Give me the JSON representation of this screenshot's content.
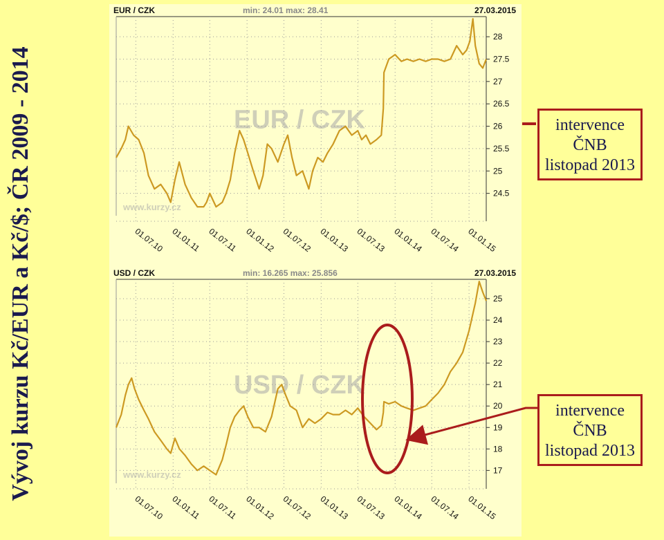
{
  "page": {
    "title": "Vývoj kurzu Kč/EUR a Kč/$; ČR 2009 - 2014"
  },
  "colors": {
    "background": "#ffff99",
    "panel": "#ffffcc",
    "line": "#cc9922",
    "annotation": "#aa1c1c",
    "title": "#1a1a4e"
  },
  "callouts": [
    {
      "lines": [
        "intervence",
        "ČNB",
        "listopad 2013"
      ]
    },
    {
      "lines": [
        "intervence",
        "ČNB",
        "listopad 2013"
      ]
    }
  ],
  "chart_data": [
    {
      "type": "line",
      "pair_label": "EUR / CZK",
      "minmax_label": "min: 24.01  max: 28.41",
      "date_label": "27.03.2015",
      "watermark": "EUR / CZK",
      "site": "www.kurzy.cz",
      "x_ticks": [
        "01.07.10",
        "01.01.11",
        "01.07.11",
        "01.01.12",
        "01.07.12",
        "01.01.13",
        "01.07.13",
        "01.01.14",
        "01.07.14",
        "01.01.15"
      ],
      "y_ticks": [
        24.5,
        25,
        25.5,
        26,
        26.5,
        27,
        27.5,
        28
      ],
      "x_range": [
        "2010-03-26",
        "2015-03-27"
      ],
      "y_range": [
        24.0,
        28.45
      ],
      "grid": true,
      "series": [
        {
          "x": [
            "2010-03-26",
            "2010-04-20",
            "2010-05-10",
            "2010-05-25",
            "2010-06-20",
            "2010-07-15",
            "2010-08-10",
            "2010-09-01",
            "2010-10-01",
            "2010-11-01",
            "2010-12-01",
            "2010-12-20",
            "2011-01-10",
            "2011-01-31",
            "2011-03-01",
            "2011-04-01",
            "2011-05-01",
            "2011-06-01",
            "2011-06-15",
            "2011-07-01",
            "2011-08-01",
            "2011-09-01",
            "2011-09-20",
            "2011-10-10",
            "2011-11-01",
            "2011-11-25",
            "2011-12-15",
            "2012-01-05",
            "2012-02-01",
            "2012-03-01",
            "2012-03-20",
            "2012-04-10",
            "2012-05-01",
            "2012-06-01",
            "2012-07-01",
            "2012-07-20",
            "2012-08-10",
            "2012-09-01",
            "2012-10-01",
            "2012-11-01",
            "2012-11-20",
            "2012-12-15",
            "2013-01-10",
            "2013-02-01",
            "2013-03-01",
            "2013-04-01",
            "2013-05-01",
            "2013-06-01",
            "2013-07-01",
            "2013-07-20",
            "2013-08-10",
            "2013-09-01",
            "2013-10-01",
            "2013-10-25",
            "2013-11-04",
            "2013-11-07",
            "2013-12-01",
            "2014-01-01",
            "2014-02-01",
            "2014-03-01",
            "2014-04-01",
            "2014-05-01",
            "2014-06-01",
            "2014-07-01",
            "2014-08-01",
            "2014-09-01",
            "2014-10-01",
            "2014-11-01",
            "2014-12-01",
            "2014-12-20",
            "2015-01-05",
            "2015-01-20",
            "2015-02-01",
            "2015-02-20",
            "2015-03-10",
            "2015-03-27"
          ],
          "y": [
            25.3,
            25.5,
            25.7,
            26.0,
            25.8,
            25.7,
            25.4,
            24.9,
            24.6,
            24.7,
            24.5,
            24.3,
            24.8,
            25.2,
            24.7,
            24.4,
            24.2,
            24.2,
            24.3,
            24.5,
            24.2,
            24.3,
            24.5,
            24.8,
            25.4,
            25.9,
            25.7,
            25.4,
            25.0,
            24.6,
            24.9,
            25.6,
            25.5,
            25.2,
            25.6,
            25.8,
            25.3,
            24.9,
            25.0,
            24.6,
            25.0,
            25.3,
            25.2,
            25.4,
            25.6,
            25.9,
            26.0,
            25.8,
            25.9,
            25.7,
            25.8,
            25.6,
            25.7,
            25.8,
            26.4,
            27.2,
            27.5,
            27.6,
            27.45,
            27.5,
            27.45,
            27.5,
            27.45,
            27.5,
            27.5,
            27.45,
            27.5,
            27.8,
            27.6,
            27.7,
            27.9,
            28.4,
            27.8,
            27.4,
            27.3,
            27.5
          ]
        }
      ]
    },
    {
      "type": "line",
      "pair_label": "USD / CZK",
      "minmax_label": "min: 16.265  max: 25.856",
      "date_label": "27.03.2015",
      "watermark": "USD / CZK",
      "site": "www.kurzy.cz",
      "x_ticks": [
        "01.07.10",
        "01.01.11",
        "01.07.11",
        "01.01.12",
        "01.07.12",
        "01.01.13",
        "01.07.13",
        "01.01.14",
        "01.07.14",
        "01.01.15"
      ],
      "y_ticks": [
        17,
        18,
        19,
        20,
        21,
        22,
        23,
        24,
        25
      ],
      "x_range": [
        "2010-03-26",
        "2015-03-27"
      ],
      "y_range": [
        16.4,
        25.9
      ],
      "grid": true,
      "series": [
        {
          "x": [
            "2010-03-26",
            "2010-04-20",
            "2010-05-10",
            "2010-05-25",
            "2010-06-10",
            "2010-06-25",
            "2010-07-15",
            "2010-08-10",
            "2010-09-01",
            "2010-10-01",
            "2010-11-01",
            "2010-12-01",
            "2010-12-20",
            "2011-01-10",
            "2011-02-01",
            "2011-03-01",
            "2011-04-01",
            "2011-05-01",
            "2011-06-01",
            "2011-07-01",
            "2011-08-01",
            "2011-09-01",
            "2011-09-20",
            "2011-10-10",
            "2011-11-01",
            "2011-11-25",
            "2011-12-15",
            "2012-01-05",
            "2012-02-01",
            "2012-03-01",
            "2012-04-01",
            "2012-05-01",
            "2012-06-01",
            "2012-06-20",
            "2012-07-10",
            "2012-08-01",
            "2012-09-01",
            "2012-10-01",
            "2012-11-01",
            "2012-12-01",
            "2013-01-01",
            "2013-02-01",
            "2013-03-01",
            "2013-04-01",
            "2013-05-01",
            "2013-06-01",
            "2013-07-01",
            "2013-08-01",
            "2013-09-01",
            "2013-10-01",
            "2013-10-25",
            "2013-11-04",
            "2013-11-07",
            "2013-12-01",
            "2014-01-01",
            "2014-02-01",
            "2014-03-01",
            "2014-04-01",
            "2014-05-01",
            "2014-06-01",
            "2014-07-01",
            "2014-08-01",
            "2014-09-01",
            "2014-10-01",
            "2014-11-01",
            "2014-12-01",
            "2015-01-01",
            "2015-01-20",
            "2015-02-01",
            "2015-02-20",
            "2015-03-10",
            "2015-03-27"
          ],
          "y": [
            19.0,
            19.6,
            20.5,
            21.0,
            21.3,
            20.8,
            20.3,
            19.8,
            19.4,
            18.8,
            18.4,
            18.0,
            17.8,
            18.5,
            18.0,
            17.7,
            17.3,
            17.0,
            17.2,
            17.0,
            16.8,
            17.5,
            18.2,
            19.0,
            19.5,
            19.8,
            20.0,
            19.5,
            19.0,
            19.0,
            18.8,
            19.5,
            20.8,
            21.0,
            20.5,
            20.0,
            19.8,
            19.0,
            19.4,
            19.2,
            19.4,
            19.7,
            19.6,
            19.6,
            19.8,
            19.6,
            19.9,
            19.5,
            19.2,
            18.9,
            19.1,
            19.7,
            20.2,
            20.1,
            20.2,
            20.0,
            19.9,
            19.8,
            19.9,
            20.0,
            20.3,
            20.6,
            21.0,
            21.6,
            22.0,
            22.5,
            23.5,
            24.3,
            24.8,
            25.8,
            25.3,
            24.9
          ]
        }
      ]
    }
  ]
}
